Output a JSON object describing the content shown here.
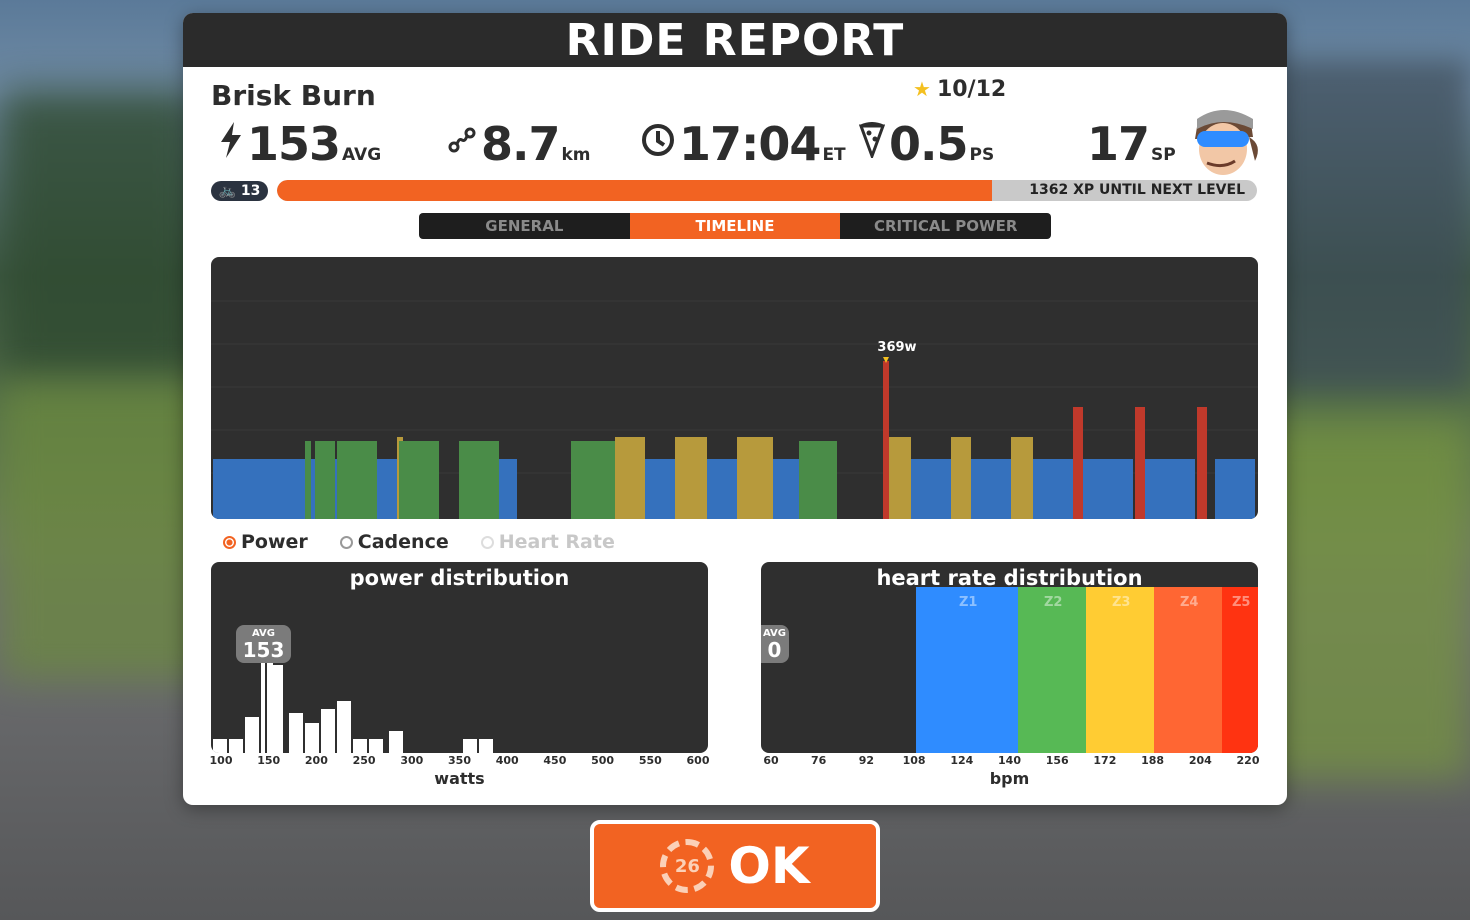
{
  "title": "RIDE REPORT",
  "workout": {
    "name": "Brisk Burn",
    "stars": "10/12"
  },
  "stats": {
    "power": {
      "value": "153",
      "unit": "AVG"
    },
    "distance": {
      "value": "8.7",
      "unit": "km"
    },
    "time": {
      "value": "17:04",
      "unit": "ET"
    },
    "pizza": {
      "value": "0.5",
      "unit": "PS"
    },
    "sport_points": {
      "value": "17",
      "unit": "SP"
    }
  },
  "level": {
    "value": "13",
    "xp_text": "1362 XP UNTIL NEXT LEVEL",
    "progress": 0.73
  },
  "tabs": [
    {
      "label": "GENERAL",
      "active": false
    },
    {
      "label": "TIMELINE",
      "active": true
    },
    {
      "label": "CRITICAL POWER",
      "active": false
    }
  ],
  "timeline": {
    "peak_label": "369w"
  },
  "toggles": {
    "power": "Power",
    "cadence": "Cadence",
    "heart_rate": "Heart Rate"
  },
  "power_distribution": {
    "title": "power distribution",
    "avg_label": "AVG",
    "avg_value": "153",
    "axis_label": "watts",
    "ticks": [
      "100",
      "150",
      "200",
      "250",
      "300",
      "350",
      "400",
      "450",
      "500",
      "550",
      "600"
    ]
  },
  "heart_rate_distribution": {
    "title": "heart rate distribution",
    "avg_label": "AVG",
    "avg_value": "0",
    "axis_label": "bpm",
    "ticks": [
      "60",
      "76",
      "92",
      "108",
      "124",
      "140",
      "156",
      "172",
      "188",
      "204",
      "220"
    ],
    "zones": [
      {
        "label": "Z1",
        "color": "#2f8cff"
      },
      {
        "label": "Z2",
        "color": "#57b955"
      },
      {
        "label": "Z3",
        "color": "#ffcc33"
      },
      {
        "label": "Z4",
        "color": "#ff6633"
      },
      {
        "label": "Z5",
        "color": "#ff3311"
      }
    ]
  },
  "ok_button": {
    "label": "OK",
    "countdown": "26"
  }
}
